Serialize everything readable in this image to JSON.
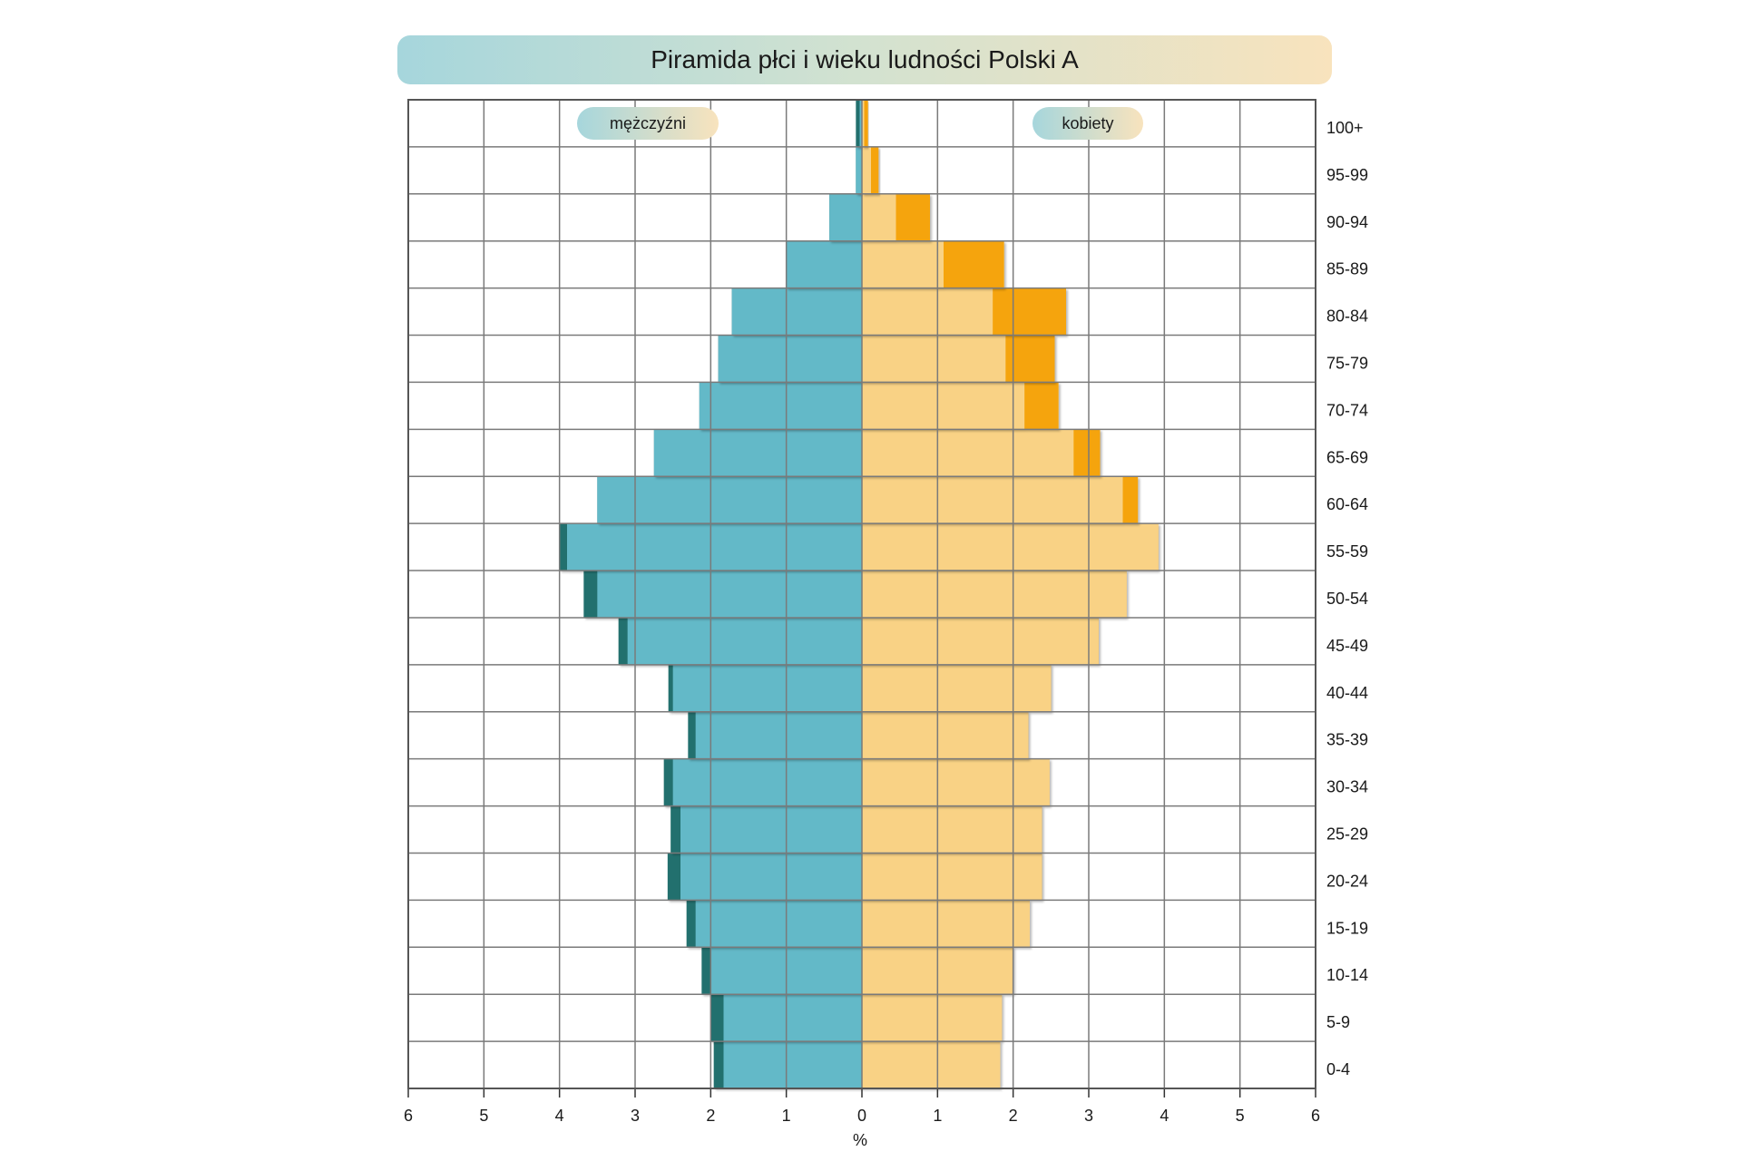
{
  "chart_data": {
    "type": "bar",
    "orientation": "horizontal-population-pyramid",
    "title": "Piramida płci i wieku ludności Polski A",
    "xlabel": "%",
    "xlim": [
      -6,
      6
    ],
    "x_ticks": [
      "6",
      "5",
      "4",
      "3",
      "2",
      "1",
      "0",
      "1",
      "2",
      "3",
      "4",
      "5",
      "6"
    ],
    "grid": true,
    "categories": [
      "0-4",
      "5-9",
      "10-14",
      "15-19",
      "20-24",
      "25-29",
      "30-34",
      "35-39",
      "40-44",
      "45-49",
      "50-54",
      "55-59",
      "60-64",
      "65-69",
      "70-74",
      "75-79",
      "80-84",
      "85-89",
      "90-94",
      "95-99",
      "100+"
    ],
    "series": [
      {
        "name": "mężczyźni",
        "side": "left",
        "values": [
          1.83,
          1.83,
          2.0,
          2.2,
          2.4,
          2.4,
          2.5,
          2.2,
          2.5,
          3.1,
          3.5,
          3.9,
          3.5,
          2.75,
          2.15,
          1.9,
          1.72,
          1.0,
          0.43,
          0.08,
          0.03
        ],
        "excess": [
          0.13,
          0.17,
          0.12,
          0.12,
          0.17,
          0.13,
          0.12,
          0.1,
          0.06,
          0.12,
          0.18,
          0.1,
          0,
          0,
          0,
          0,
          0,
          0,
          0,
          0,
          0.05
        ],
        "color": "#64b9c8",
        "excess_color": "#22706e"
      },
      {
        "name": "kobiety",
        "side": "right",
        "values": [
          1.83,
          1.85,
          2.0,
          2.22,
          2.38,
          2.38,
          2.48,
          2.2,
          2.5,
          3.13,
          3.5,
          3.92,
          3.45,
          2.8,
          2.15,
          1.9,
          1.73,
          1.08,
          0.45,
          0.12,
          0.03
        ],
        "excess": [
          0,
          0,
          0,
          0,
          0,
          0,
          0,
          0,
          0,
          0,
          0,
          0,
          0.2,
          0.35,
          0.45,
          0.65,
          0.97,
          0.8,
          0.45,
          0.1,
          0.05
        ],
        "color": "#f9d285",
        "excess_color": "#f5a40f"
      }
    ],
    "legend": [
      "mężczyźni",
      "kobiety"
    ],
    "colors": {
      "male": "#64b9c8",
      "male_excess": "#22706e",
      "female": "#f9d285",
      "female_excess": "#f5a40f",
      "grid": "#7a7a7a"
    }
  }
}
